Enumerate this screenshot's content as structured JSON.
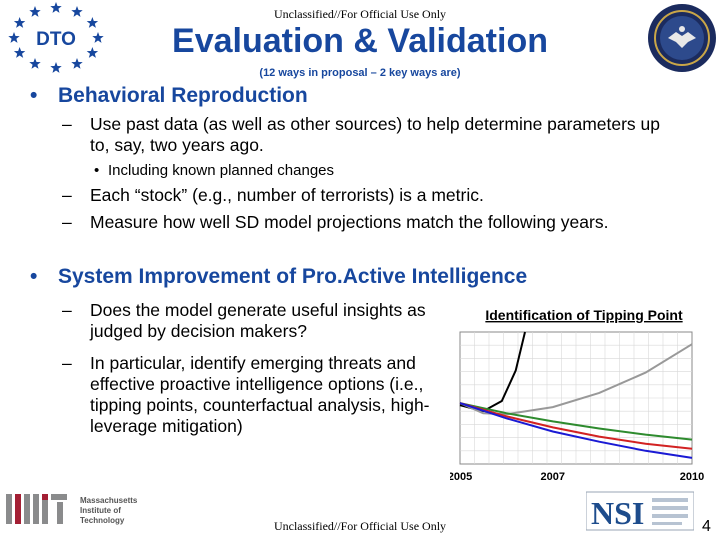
{
  "classification_top": "Unclassified//For Official Use Only",
  "classification_bottom": "Unclassified//For Official Use Only",
  "title": "Evaluation & Validation",
  "subtitle": "(12 ways in proposal – 2 key ways are)",
  "logos": {
    "dto": "DTO",
    "mit_line1": "Massachusetts",
    "mit_line2": "Institute of",
    "mit_line3": "Technology",
    "nsi": "NSI"
  },
  "section1": {
    "heading": "Behavioral Reproduction",
    "items": [
      {
        "text": "Use past data (as well as other sources) to help determine parameters up to, say, two years ago.",
        "sub": "Including known planned changes"
      },
      {
        "text": "Each “stock” (e.g., number of terrorists) is a metric."
      },
      {
        "text": "Measure how well SD model projections match the following years."
      }
    ]
  },
  "section2": {
    "heading": "System Improvement of Pro.Active Intelligence",
    "items": [
      {
        "text": "Does the model generate useful insights as judged by decision makers?"
      },
      {
        "text": "In particular, identify emerging threats and effective proactive intelligence options (i.e., tipping points, counterfactual analysis, high-leverage mitigation)"
      }
    ]
  },
  "chart_data": {
    "type": "line",
    "title": "Identification of Tipping Point",
    "x_ticks": [
      "2005",
      "2007",
      "2010"
    ],
    "xlim": [
      2005,
      2010
    ],
    "grid": true,
    "series": [
      {
        "color": "#000000",
        "x": [
          2005,
          2005.5,
          2005.9,
          2006.2,
          2006.4
        ],
        "y": [
          0.28,
          0.22,
          0.32,
          0.62,
          1.0
        ]
      },
      {
        "color": "#999999",
        "x": [
          2005,
          2005.5,
          2006,
          2007,
          2008,
          2009,
          2010
        ],
        "y": [
          0.3,
          0.2,
          0.19,
          0.26,
          0.4,
          0.6,
          0.88
        ]
      },
      {
        "color": "#2e8b2e",
        "x": [
          2005,
          2006,
          2007,
          2008,
          2009,
          2010
        ],
        "y": [
          0.3,
          0.2,
          0.12,
          0.05,
          -0.01,
          -0.06
        ]
      },
      {
        "color": "#d22222",
        "x": [
          2005,
          2006,
          2007,
          2008,
          2009,
          2010
        ],
        "y": [
          0.3,
          0.17,
          0.06,
          -0.03,
          -0.1,
          -0.15
        ]
      },
      {
        "color": "#1a1ad4",
        "x": [
          2005,
          2006,
          2007,
          2008,
          2009,
          2010
        ],
        "y": [
          0.3,
          0.15,
          0.02,
          -0.08,
          -0.17,
          -0.24
        ]
      }
    ]
  },
  "page_number": "4",
  "colors": {
    "title_blue": "#17479e",
    "dto_blue": "#17479e",
    "mit_red": "#a31f34"
  }
}
